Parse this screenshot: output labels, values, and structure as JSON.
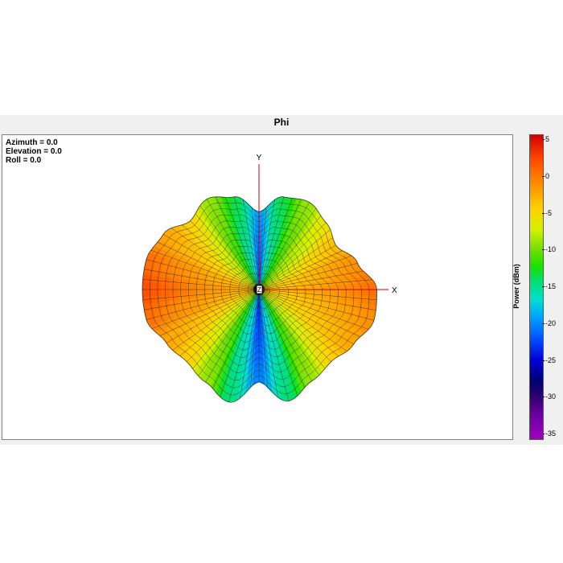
{
  "window": {
    "title": "Phi"
  },
  "view": {
    "azimuth_text": "Azimuth = 0.0",
    "elevation_text": "Elevation = 0.0",
    "roll_text": "Roll = 0.0"
  },
  "axes": {
    "x_label": "X",
    "y_label": "Y",
    "z_label": "Z"
  },
  "colors": {
    "axis": "#cc0000",
    "mesh": "#1a1a1a"
  },
  "chart_data": {
    "type": "heatmap",
    "title": "Phi",
    "colorbar": {
      "label": "Power (dBm)",
      "range": [
        -35,
        5
      ],
      "ticks": [
        5,
        0,
        -5,
        -10,
        -15,
        -20,
        -25,
        -30,
        -35
      ],
      "tick_labels": [
        "5",
        "0",
        "-5",
        "-10",
        "-15",
        "-20",
        "-25",
        "-30",
        "-35"
      ]
    },
    "pattern": {
      "view_azimuth_deg": 0.0,
      "view_elevation_deg": 0.0,
      "view_roll_deg": 0.0,
      "angles_deg": [
        0,
        15,
        30,
        45,
        60,
        75,
        90,
        105,
        120,
        135,
        150,
        165,
        180,
        195,
        210,
        225,
        240,
        255,
        270,
        285,
        300,
        315,
        330,
        345
      ],
      "power_dbm": [
        1,
        0,
        -2,
        -4,
        -7,
        -11,
        -18,
        -11,
        -7,
        -3,
        -1,
        1,
        2,
        1,
        -1,
        -3,
        -7,
        -12,
        -19,
        -12,
        -7,
        -3,
        -1,
        0
      ],
      "relative_radius": [
        0.97,
        0.84,
        0.73,
        0.78,
        0.83,
        0.79,
        0.64,
        0.79,
        0.86,
        0.8,
        0.91,
        0.96,
        0.96,
        0.96,
        0.88,
        0.84,
        0.88,
        0.96,
        0.76,
        0.95,
        0.87,
        0.84,
        0.9,
        0.98
      ]
    }
  }
}
